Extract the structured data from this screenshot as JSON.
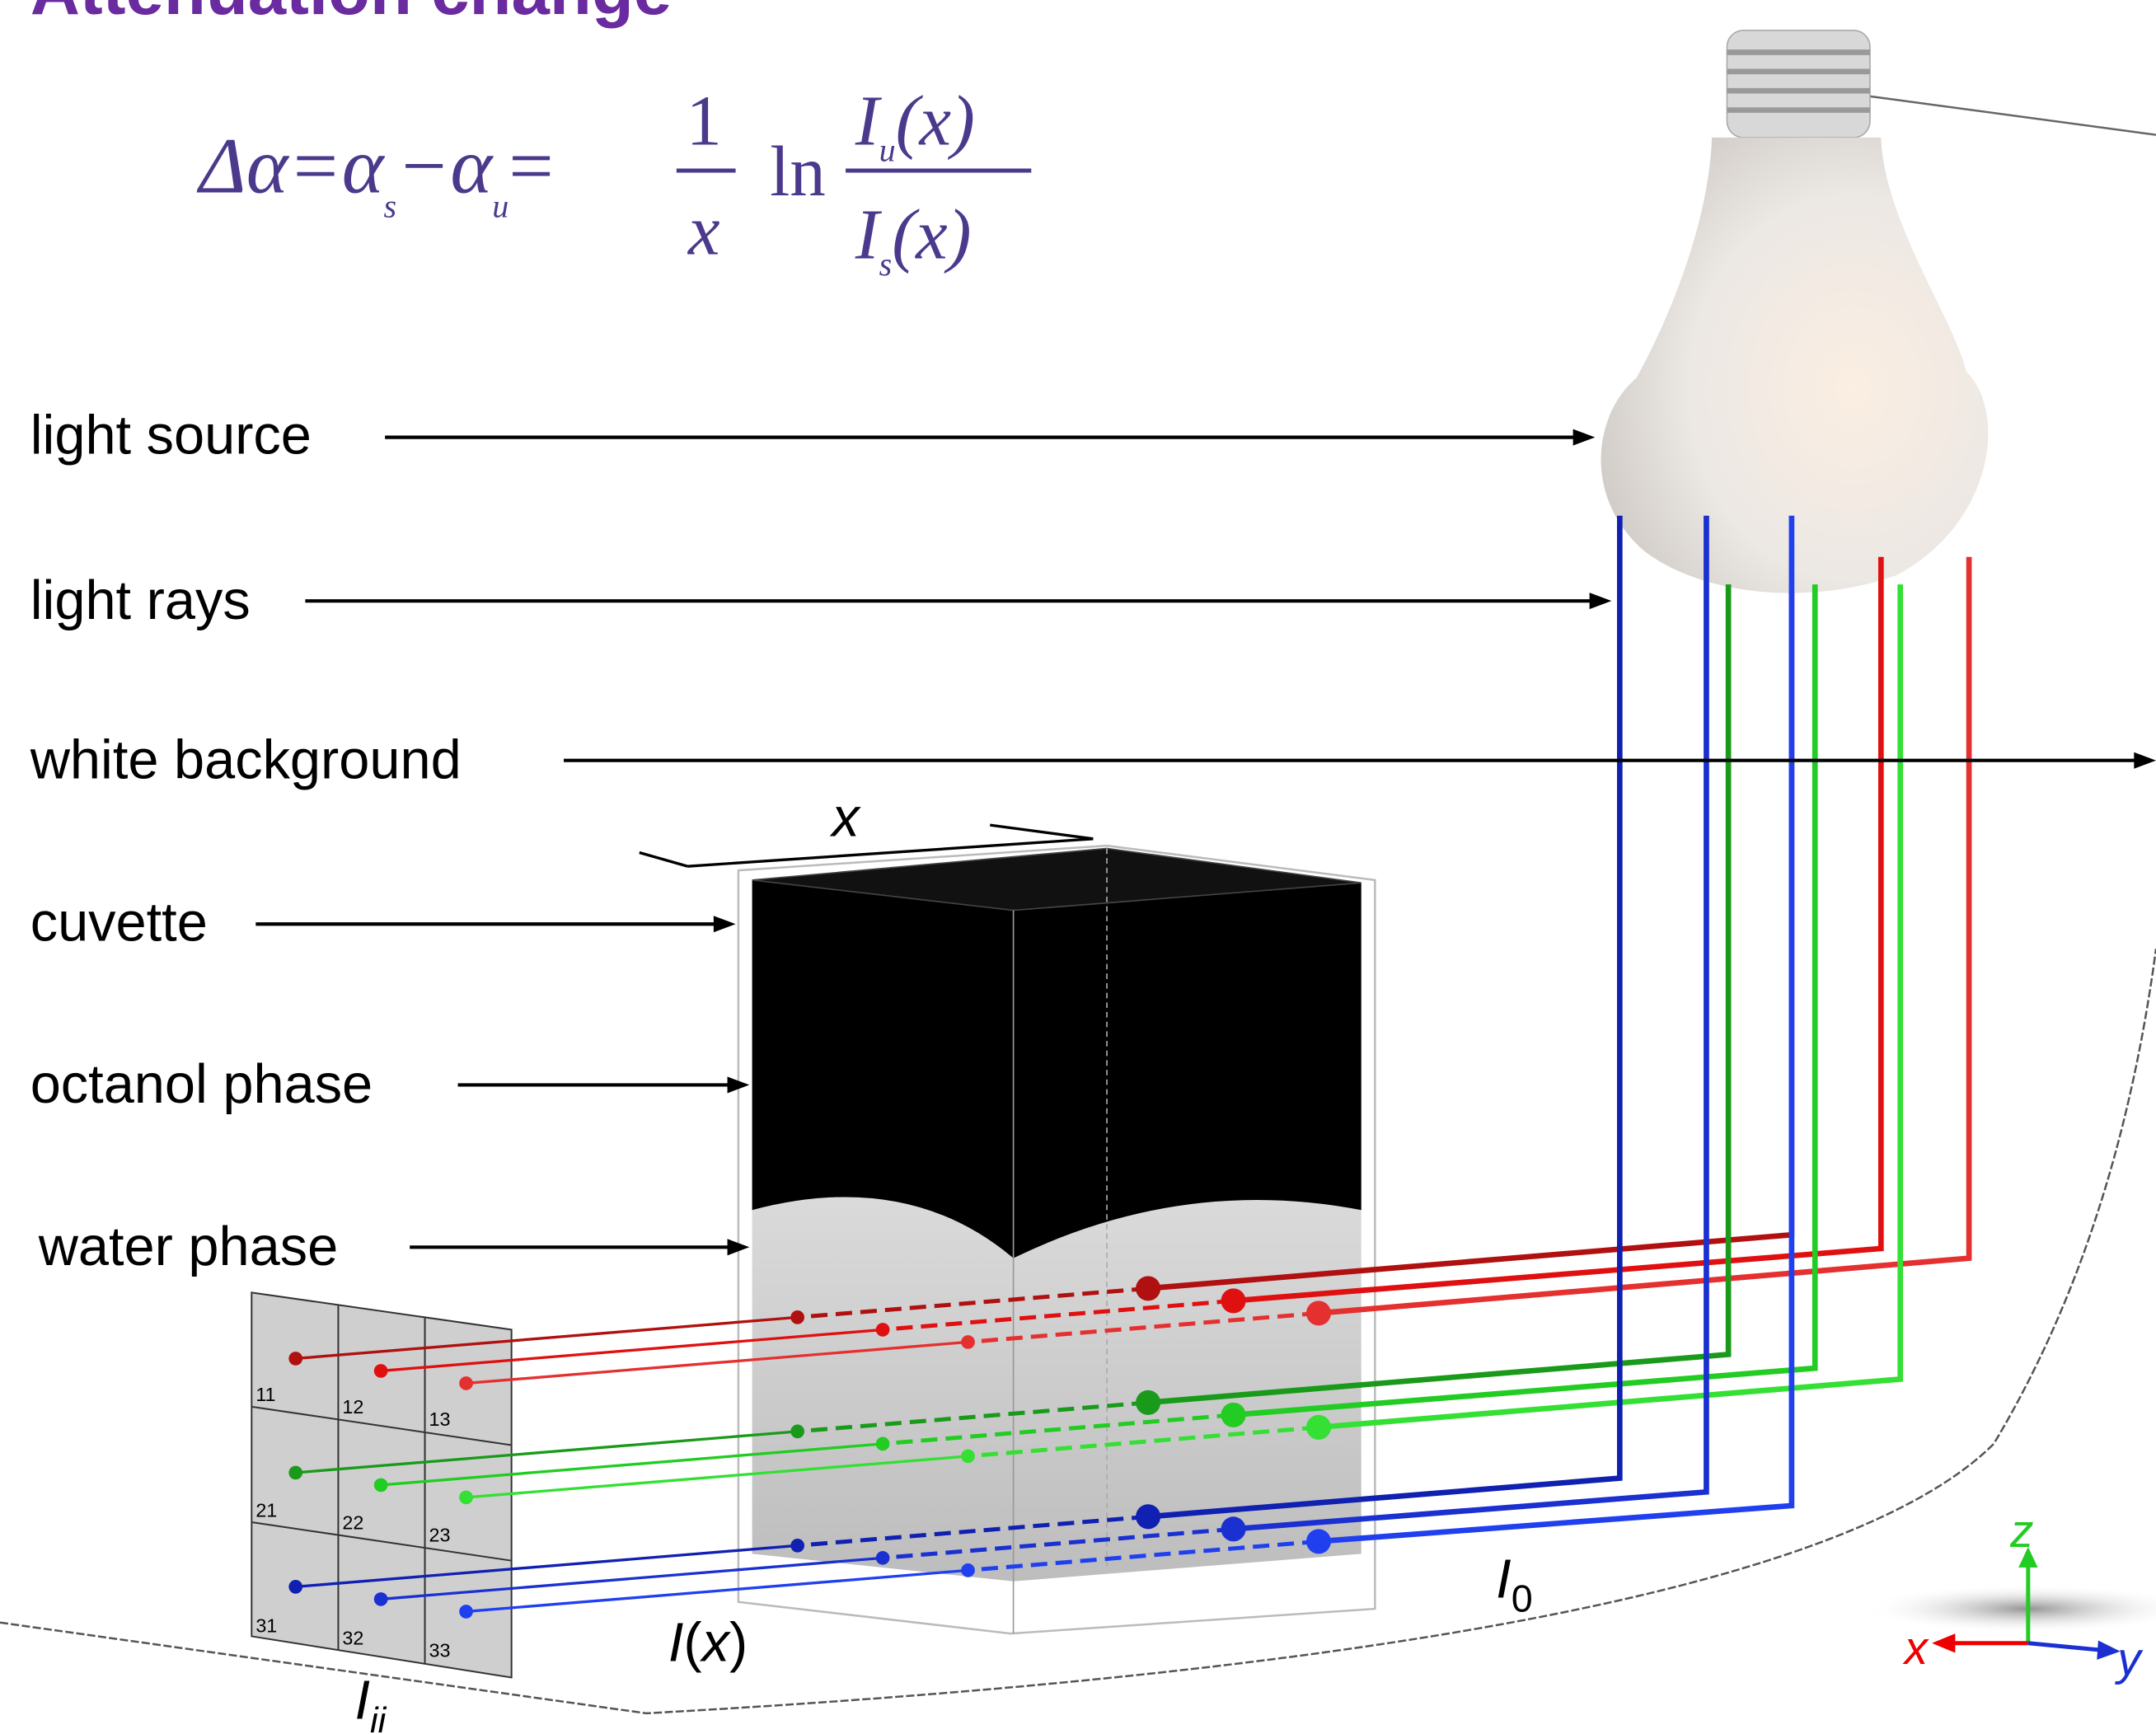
{
  "title": "Attenuation change",
  "formula": {
    "parts": [
      "Δα=α",
      "s",
      "−α",
      "u",
      "=",
      "1",
      "x",
      "ln",
      "I",
      "u",
      "(x)",
      "I",
      "s",
      "(x)"
    ]
  },
  "labels": [
    "light source",
    "light rays",
    "white background",
    "cuvette",
    "octanol phase",
    "water phase"
  ],
  "dimension": "x",
  "grid": {
    "cells": [
      "11",
      "12",
      "13",
      "21",
      "22",
      "23",
      "31",
      "32",
      "33"
    ]
  },
  "intensity_x": {
    "symbol": "I",
    "open": "(",
    "var": "x",
    "close": ")"
  },
  "intensity_0": {
    "symbol": "I",
    "sub": "0"
  },
  "intensity_ii": {
    "symbol": "I",
    "sub": "ii"
  },
  "axes": {
    "x": "x",
    "y": "y",
    "z": "z"
  }
}
